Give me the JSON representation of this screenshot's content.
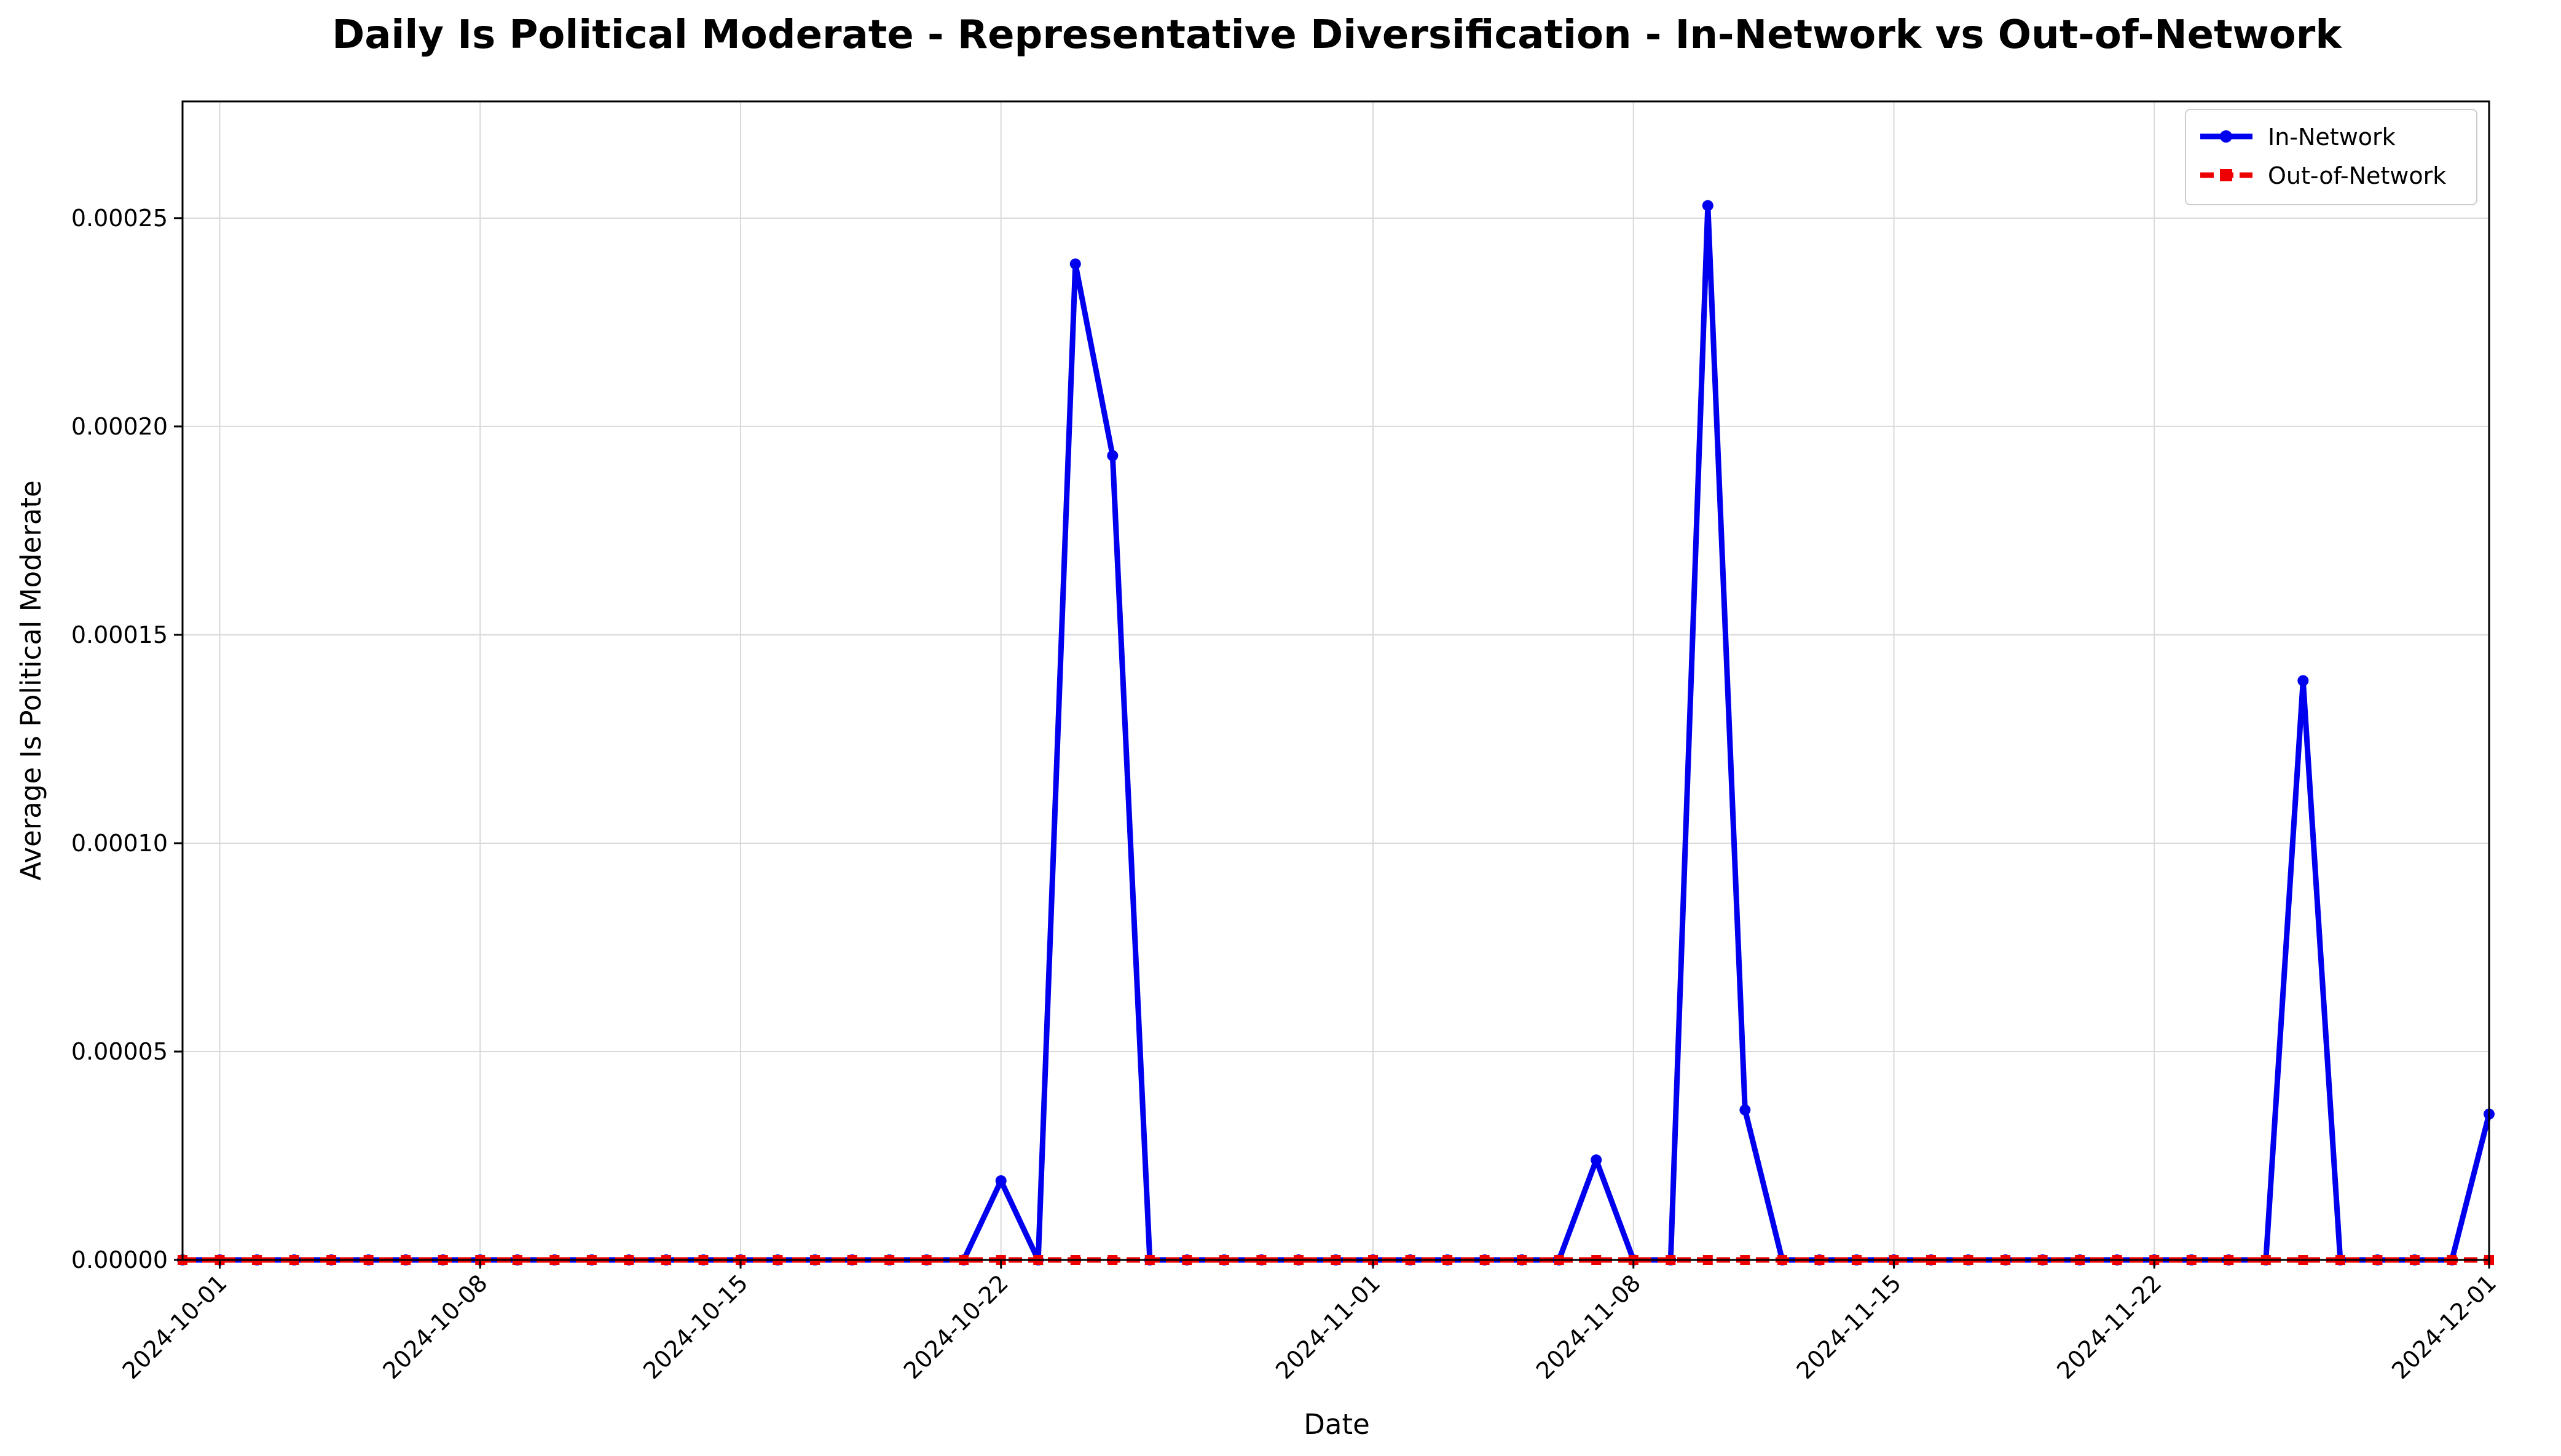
{
  "chart_data": {
    "type": "line",
    "title": "Daily Is Political Moderate - Representative Diversification - In-Network vs Out-of-Network",
    "xlabel": "Date",
    "ylabel": "Average Is Political Moderate",
    "x_tick_labels": [
      "2024-10-01",
      "2024-10-08",
      "2024-10-15",
      "2024-10-22",
      "2024-11-01",
      "2024-11-08",
      "2024-11-15",
      "2024-11-22",
      "2024-12-01"
    ],
    "y_tick_labels": [
      "0.00000",
      "0.00005",
      "0.00010",
      "0.00015",
      "0.00020",
      "0.00025"
    ],
    "ylim": [
      0,
      0.000278
    ],
    "xlim": [
      "2024-09-30",
      "2024-12-01"
    ],
    "grid": true,
    "legend_position": "top-right",
    "x": [
      "2024-09-30",
      "2024-10-01",
      "2024-10-02",
      "2024-10-03",
      "2024-10-04",
      "2024-10-05",
      "2024-10-06",
      "2024-10-07",
      "2024-10-08",
      "2024-10-09",
      "2024-10-10",
      "2024-10-11",
      "2024-10-12",
      "2024-10-13",
      "2024-10-14",
      "2024-10-15",
      "2024-10-16",
      "2024-10-17",
      "2024-10-18",
      "2024-10-19",
      "2024-10-20",
      "2024-10-21",
      "2024-10-22",
      "2024-10-23",
      "2024-10-24",
      "2024-10-25",
      "2024-10-26",
      "2024-10-27",
      "2024-10-28",
      "2024-10-29",
      "2024-10-30",
      "2024-10-31",
      "2024-11-01",
      "2024-11-02",
      "2024-11-03",
      "2024-11-04",
      "2024-11-05",
      "2024-11-06",
      "2024-11-07",
      "2024-11-08",
      "2024-11-09",
      "2024-11-10",
      "2024-11-11",
      "2024-11-12",
      "2024-11-13",
      "2024-11-14",
      "2024-11-15",
      "2024-11-16",
      "2024-11-17",
      "2024-11-18",
      "2024-11-19",
      "2024-11-20",
      "2024-11-21",
      "2024-11-22",
      "2024-11-23",
      "2024-11-24",
      "2024-11-25",
      "2024-11-26",
      "2024-11-27",
      "2024-11-28",
      "2024-11-29",
      "2024-11-30",
      "2024-12-01"
    ],
    "series": [
      {
        "name": "In-Network",
        "color": "#0000ee",
        "marker": "circle",
        "line_style": "solid",
        "values": [
          0,
          0,
          0,
          0,
          0,
          0,
          0,
          0,
          0,
          0,
          0,
          0,
          0,
          0,
          0,
          0,
          0,
          0,
          0,
          0,
          0,
          0,
          1.9e-05,
          0,
          0.000239,
          0.000193,
          0,
          0,
          0,
          0,
          0,
          0,
          0,
          0,
          0,
          0,
          0,
          0,
          2.4e-05,
          0,
          0,
          0.000253,
          3.6e-05,
          0,
          0,
          0,
          0,
          0,
          0,
          0,
          0,
          0,
          0,
          0,
          0,
          0,
          0,
          0.000139,
          0,
          0,
          0,
          0,
          3.5e-05
        ]
      },
      {
        "name": "Out-of-Network",
        "color": "#ee0000",
        "marker": "square",
        "line_style": "dashed",
        "values": [
          0,
          0,
          0,
          0,
          0,
          0,
          0,
          0,
          0,
          0,
          0,
          0,
          0,
          0,
          0,
          0,
          0,
          0,
          0,
          0,
          0,
          0,
          0,
          0,
          0,
          0,
          0,
          0,
          0,
          0,
          0,
          0,
          0,
          0,
          0,
          0,
          0,
          0,
          0,
          0,
          0,
          0,
          0,
          0,
          0,
          0,
          0,
          0,
          0,
          0,
          0,
          0,
          0,
          0,
          0,
          0,
          0,
          0,
          0,
          0,
          0,
          0,
          0
        ]
      }
    ]
  }
}
